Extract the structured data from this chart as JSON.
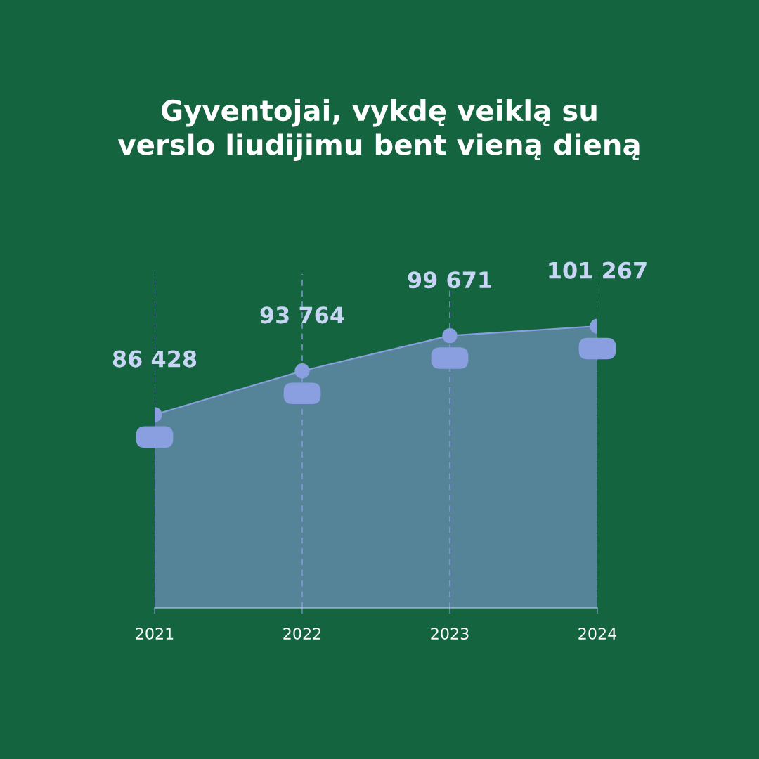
{
  "chart_data": {
    "type": "area",
    "title": "Gyventojai, vykdę veiklą su\nverslo liudijimu bent vieną dieną",
    "categories": [
      "2021",
      "2022",
      "2023",
      "2024"
    ],
    "series": [
      {
        "color": "#8a9fe0",
        "values": [
          86428,
          93764,
          99671,
          101267
        ],
        "value_labels": [
          "86 428",
          "93 764",
          "99 671",
          "101 267"
        ]
      }
    ],
    "ylim": [
      54000,
      110000
    ],
    "tick_labels": "x",
    "grid": "x",
    "marker": "circle",
    "line_style": "solid"
  }
}
